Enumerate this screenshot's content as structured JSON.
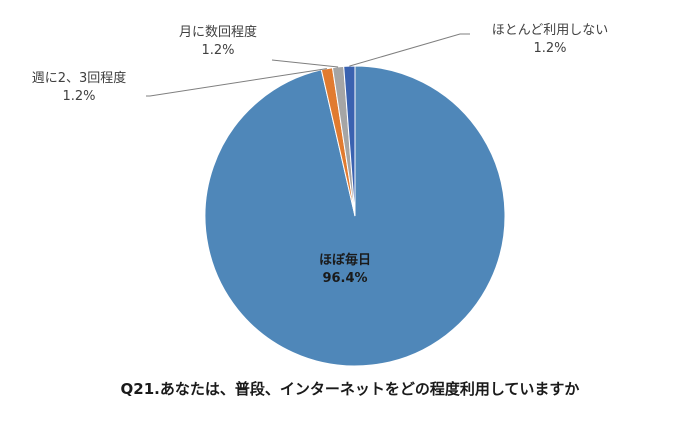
{
  "chart_data": {
    "type": "pie",
    "title": "Q21.あなたは、普段、インターネットをどの程度利用していますか",
    "slices": [
      {
        "name": "ほぼ毎日",
        "value": 96.4,
        "label": "96.4%",
        "color": "#4f87b9"
      },
      {
        "name": "週に2、3回程度",
        "value": 1.2,
        "label": "1.2%",
        "color": "#e17b30"
      },
      {
        "name": "月に数回程度",
        "value": 1.2,
        "label": "1.2%",
        "color": "#a5a5a5"
      },
      {
        "name": "ほとんど利用しない",
        "value": 1.2,
        "label": "1.2%",
        "color": "#3a62b0"
      }
    ],
    "legend": "none"
  }
}
